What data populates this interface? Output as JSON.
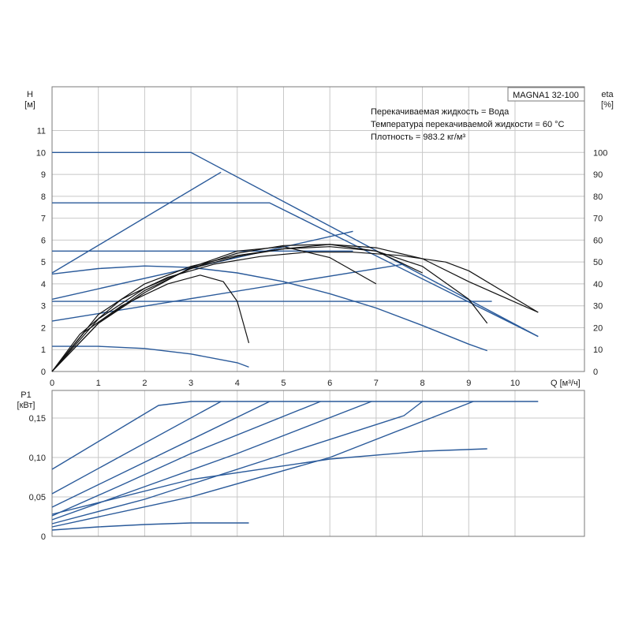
{
  "chart_data": {
    "type": "line",
    "title": "MAGNA1 32-100",
    "notes": [
      "Перекачиваемая жидкость = Вода",
      "Температура перекачиваемой жидкости = 60 °C",
      "Плотность = 983.2 кг/м³"
    ],
    "xlabel": "Q [м³/ч]",
    "xlim": [
      0,
      11.5
    ],
    "xticks": [
      0,
      1,
      2,
      3,
      4,
      5,
      6,
      7,
      8,
      9,
      10
    ],
    "head_panel": {
      "ylabel_top": "H",
      "ylabel_unit": "[м]",
      "ylim": [
        0,
        13
      ],
      "yticks": [
        0,
        1,
        2,
        3,
        4,
        5,
        6,
        7,
        8,
        9,
        10,
        11
      ],
      "y2label_top": "eta",
      "y2label_unit": "[%]",
      "y2lim": [
        0,
        130
      ],
      "y2ticks": [
        0,
        10,
        20,
        30,
        40,
        50,
        60,
        70,
        80,
        90,
        100
      ],
      "head_curves": [
        [
          [
            0,
            10
          ],
          [
            3,
            10
          ],
          [
            10.5,
            1.6
          ]
        ],
        [
          [
            0,
            7.7
          ],
          [
            4.7,
            7.7
          ],
          [
            10.5,
            1.6
          ]
        ],
        [
          [
            0,
            5.5
          ],
          [
            6.5,
            5.5
          ]
        ],
        [
          [
            0,
            3.2
          ],
          [
            9.5,
            3.2
          ]
        ],
        [
          [
            0,
            4.5
          ],
          [
            3.65,
            9.1
          ]
        ],
        [
          [
            0,
            3.3
          ],
          [
            6.5,
            6.4
          ]
        ],
        [
          [
            0,
            2.3
          ],
          [
            7.6,
            4.9
          ]
        ],
        [
          [
            0,
            4.45
          ],
          [
            1,
            4.7
          ],
          [
            2,
            4.82
          ],
          [
            3,
            4.75
          ],
          [
            4,
            4.5
          ],
          [
            5,
            4.1
          ],
          [
            6,
            3.55
          ],
          [
            7,
            2.9
          ],
          [
            8,
            2.1
          ],
          [
            9,
            1.25
          ],
          [
            9.4,
            0.95
          ]
        ],
        [
          [
            0,
            1.15
          ],
          [
            1,
            1.15
          ],
          [
            2,
            1.05
          ],
          [
            3,
            0.8
          ],
          [
            4,
            0.4
          ],
          [
            4.25,
            0.2
          ]
        ]
      ],
      "eta_curves": [
        [
          [
            0,
            0
          ],
          [
            0.6,
            17
          ],
          [
            1.5,
            33
          ],
          [
            2.5,
            43
          ],
          [
            3.5,
            49
          ],
          [
            4.5,
            52.5
          ],
          [
            5.5,
            54.5
          ],
          [
            6.5,
            54.5
          ],
          [
            7.5,
            53
          ],
          [
            8.5,
            50
          ],
          [
            9,
            46
          ],
          [
            10.5,
            27
          ]
        ],
        [
          [
            0,
            0
          ],
          [
            1,
            26
          ],
          [
            2,
            40
          ],
          [
            3,
            48
          ],
          [
            4,
            53
          ],
          [
            5,
            56
          ],
          [
            6,
            58
          ],
          [
            7,
            56.5
          ],
          [
            8,
            51.5
          ],
          [
            9,
            41
          ],
          [
            10.5,
            27
          ]
        ],
        [
          [
            0,
            0
          ],
          [
            1,
            24
          ],
          [
            2,
            38
          ],
          [
            3,
            47
          ],
          [
            4,
            52.5
          ],
          [
            5,
            56
          ],
          [
            6,
            57
          ],
          [
            7,
            55
          ],
          [
            8,
            48
          ],
          [
            9,
            33
          ],
          [
            9.4,
            22
          ]
        ],
        [
          [
            0,
            0
          ],
          [
            1,
            22
          ],
          [
            2,
            37
          ],
          [
            3,
            47
          ],
          [
            4,
            54
          ],
          [
            5,
            57.5
          ],
          [
            6,
            58
          ],
          [
            7,
            55
          ],
          [
            8,
            45
          ]
        ],
        [
          [
            0,
            0
          ],
          [
            1,
            22
          ],
          [
            2,
            36
          ],
          [
            3,
            47.5
          ],
          [
            4,
            55
          ],
          [
            5,
            57
          ],
          [
            6,
            52
          ],
          [
            7,
            40
          ]
        ],
        [
          [
            0,
            0
          ],
          [
            0.7,
            18
          ],
          [
            1.5,
            30
          ],
          [
            2.5,
            40
          ],
          [
            3.2,
            44
          ],
          [
            3.7,
            41
          ],
          [
            4,
            32
          ],
          [
            4.25,
            13
          ]
        ]
      ]
    },
    "power_panel": {
      "ylabel_top": "P1",
      "ylabel_unit": "[кВт]",
      "ylim": [
        0,
        0.185
      ],
      "yticks": [
        0,
        0.05,
        0.1,
        0.15
      ],
      "yticklabels": [
        "0",
        "0,05",
        "0,10",
        "0,15"
      ],
      "curves": [
        [
          [
            0,
            0.085
          ],
          [
            2.3,
            0.166
          ],
          [
            3,
            0.171
          ],
          [
            10.5,
            0.171
          ]
        ],
        [
          [
            0,
            0.054
          ],
          [
            3.65,
            0.171
          ]
        ],
        [
          [
            0,
            0.037
          ],
          [
            4.7,
            0.171
          ]
        ],
        [
          [
            0,
            0.026
          ],
          [
            1.5,
            0.065
          ],
          [
            3,
            0.105
          ],
          [
            5.8,
            0.171
          ]
        ],
        [
          [
            0,
            0.021
          ],
          [
            2,
            0.063
          ],
          [
            4,
            0.105
          ],
          [
            6.9,
            0.171
          ]
        ],
        [
          [
            0,
            0.016
          ],
          [
            2,
            0.047
          ],
          [
            5,
            0.104
          ],
          [
            7.6,
            0.153
          ],
          [
            8,
            0.171
          ]
        ],
        [
          [
            0,
            0.012
          ],
          [
            3,
            0.05
          ],
          [
            6,
            0.1
          ],
          [
            9.1,
            0.171
          ]
        ],
        [
          [
            0,
            0.028
          ],
          [
            3,
            0.072
          ],
          [
            6,
            0.098
          ],
          [
            8,
            0.108
          ],
          [
            9.4,
            0.111
          ]
        ],
        [
          [
            0,
            0.008
          ],
          [
            1,
            0.012
          ],
          [
            2,
            0.015
          ],
          [
            3,
            0.017
          ],
          [
            4.25,
            0.017
          ]
        ]
      ]
    }
  }
}
